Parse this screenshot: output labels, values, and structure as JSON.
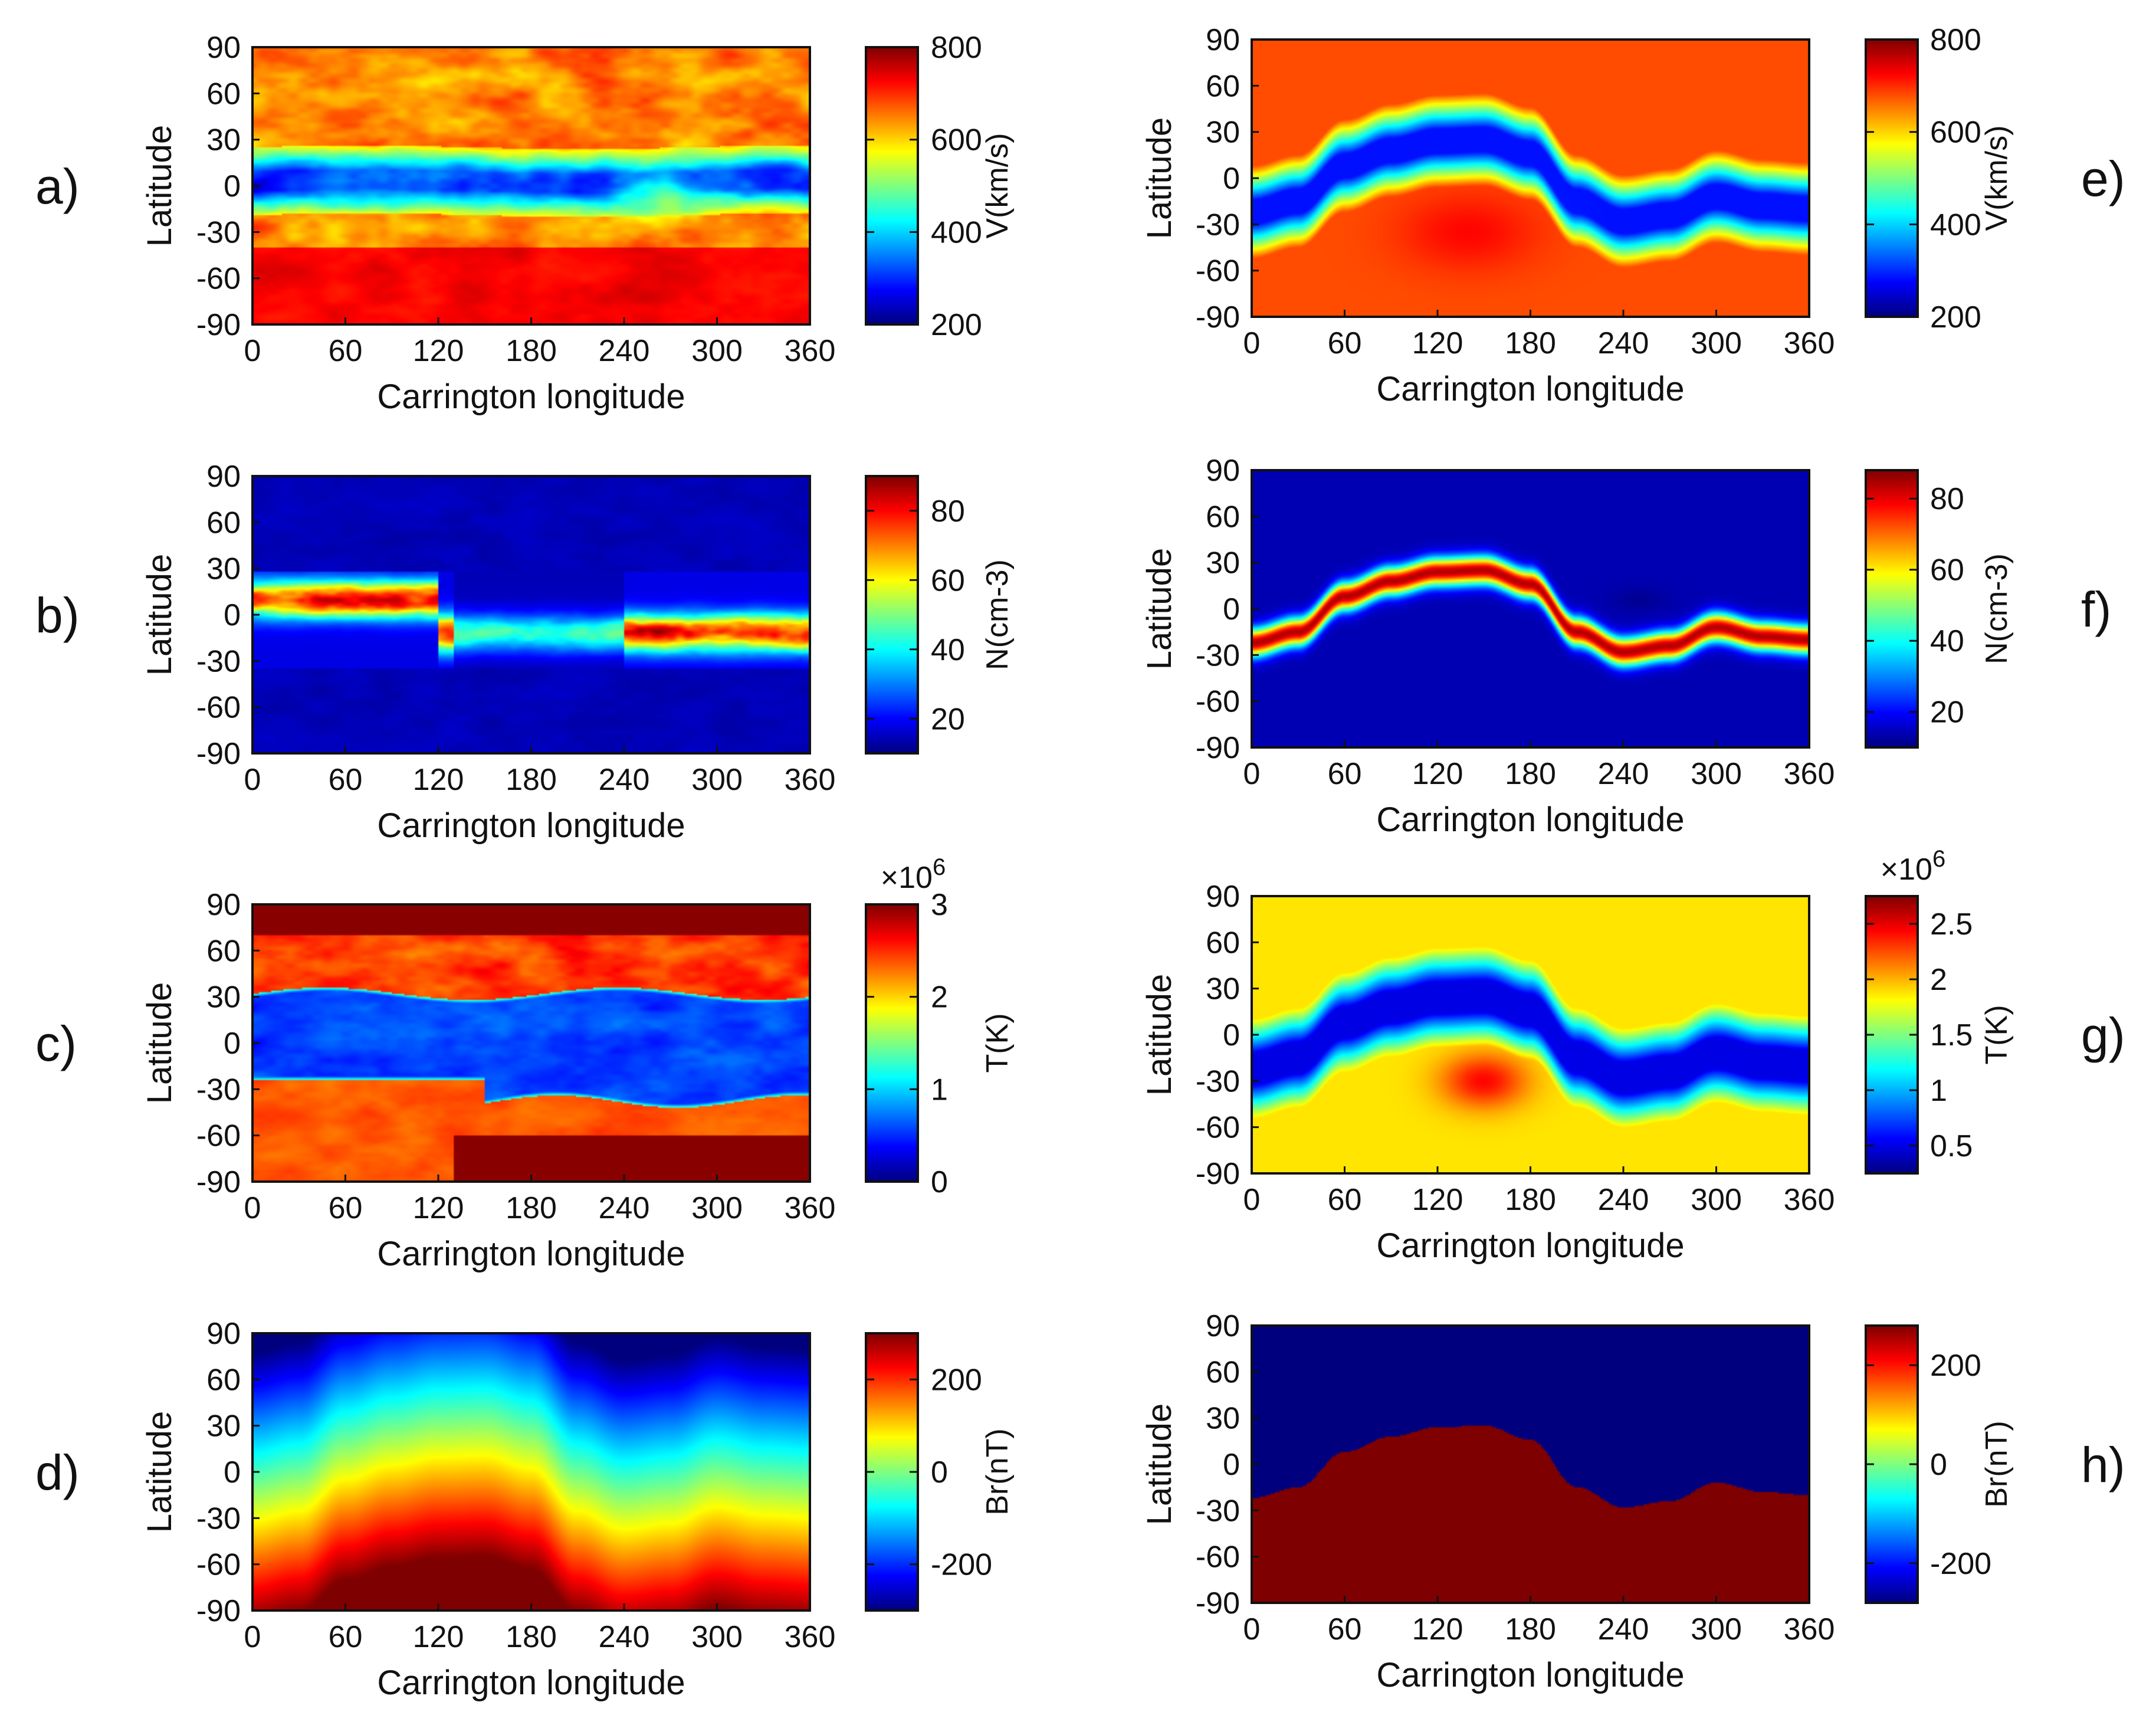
{
  "figure": {
    "description_free": true,
    "colormap": "jet",
    "colormap_stops": [
      "#00007f",
      "#0000ff",
      "#007fff",
      "#00ffff",
      "#7fff7f",
      "#ffff00",
      "#ff7f00",
      "#ff0000",
      "#7f0000"
    ]
  },
  "chart_data": [
    {
      "id": "a",
      "panel_label": "a)",
      "type": "heatmap",
      "column": "left",
      "row": 0,
      "xlabel": "Carrington longitude",
      "ylabel": "Latitude",
      "xlim": [
        0,
        360
      ],
      "ylim": [
        -90,
        90
      ],
      "xticks": [
        "0",
        "60",
        "120",
        "180",
        "240",
        "300",
        "360"
      ],
      "yticks": [
        "90",
        "60",
        "30",
        "0",
        "-30",
        "-60",
        "-90"
      ],
      "colorbar": {
        "label": "V(km/s)",
        "range": [
          200,
          800
        ],
        "ticks": [
          "800",
          "600",
          "400",
          "200"
        ],
        "tick_values": [
          800,
          600,
          400,
          200
        ],
        "multiplier": ""
      },
      "pattern": "obs_speed"
    },
    {
      "id": "b",
      "panel_label": "b)",
      "type": "heatmap",
      "column": "left",
      "row": 1,
      "xlabel": "Carrington longitude",
      "ylabel": "Latitude",
      "xlim": [
        0,
        360
      ],
      "ylim": [
        -90,
        90
      ],
      "xticks": [
        "0",
        "60",
        "120",
        "180",
        "240",
        "300",
        "360"
      ],
      "yticks": [
        "90",
        "60",
        "30",
        "0",
        "-30",
        "-60",
        "-90"
      ],
      "colorbar": {
        "label": "N(cm-3)",
        "range": [
          10,
          90
        ],
        "ticks": [
          "80",
          "60",
          "40",
          "20"
        ],
        "tick_values": [
          80,
          60,
          40,
          20
        ],
        "multiplier": ""
      },
      "pattern": "obs_density"
    },
    {
      "id": "c",
      "panel_label": "c)",
      "type": "heatmap",
      "column": "left",
      "row": 2,
      "xlabel": "Carrington longitude",
      "ylabel": "Latitude",
      "xlim": [
        0,
        360
      ],
      "ylim": [
        -90,
        90
      ],
      "xticks": [
        "0",
        "60",
        "120",
        "180",
        "240",
        "300",
        "360"
      ],
      "yticks": [
        "90",
        "60",
        "30",
        "0",
        "-30",
        "-60",
        "-90"
      ],
      "colorbar": {
        "label": "T(K)",
        "range": [
          0,
          3
        ],
        "ticks": [
          "3",
          "2",
          "1",
          "0"
        ],
        "tick_values": [
          3,
          2,
          1,
          0
        ],
        "multiplier": "×10",
        "multiplier_exp": "6"
      },
      "pattern": "obs_temp"
    },
    {
      "id": "d",
      "panel_label": "d)",
      "type": "heatmap",
      "column": "left",
      "row": 3,
      "xlabel": "Carrington longitude",
      "ylabel": "Latitude",
      "xlim": [
        0,
        360
      ],
      "ylim": [
        -90,
        90
      ],
      "xticks": [
        "0",
        "60",
        "120",
        "180",
        "240",
        "300",
        "360"
      ],
      "yticks": [
        "90",
        "60",
        "30",
        "0",
        "-30",
        "-60",
        "-90"
      ],
      "colorbar": {
        "label": "Br(nT)",
        "range": [
          -300,
          300
        ],
        "ticks": [
          "200",
          "0",
          "-200"
        ],
        "tick_values": [
          200,
          0,
          -200
        ],
        "multiplier": ""
      },
      "pattern": "obs_br"
    },
    {
      "id": "e",
      "panel_label": "e)",
      "type": "heatmap",
      "column": "right",
      "row": 0,
      "xlabel": "Carrington longitude",
      "ylabel": "Latitude",
      "xlim": [
        0,
        360
      ],
      "ylim": [
        -90,
        90
      ],
      "xticks": [
        "0",
        "60",
        "120",
        "180",
        "240",
        "300",
        "360"
      ],
      "yticks": [
        "90",
        "60",
        "30",
        "0",
        "-30",
        "-60",
        "-90"
      ],
      "colorbar": {
        "label": "V(km/s)",
        "range": [
          200,
          800
        ],
        "ticks": [
          "800",
          "600",
          "400",
          "200"
        ],
        "tick_values": [
          800,
          600,
          400,
          200
        ],
        "multiplier": ""
      },
      "pattern": "model_speed"
    },
    {
      "id": "f",
      "panel_label": "f)",
      "type": "heatmap",
      "column": "right",
      "row": 1,
      "xlabel": "Carrington longitude",
      "ylabel": "Latitude",
      "xlim": [
        0,
        360
      ],
      "ylim": [
        -90,
        90
      ],
      "xticks": [
        "0",
        "60",
        "120",
        "180",
        "240",
        "300",
        "360"
      ],
      "yticks": [
        "90",
        "60",
        "30",
        "0",
        "-30",
        "-60",
        "-90"
      ],
      "colorbar": {
        "label": "N(cm-3)",
        "range": [
          10,
          88
        ],
        "ticks": [
          "80",
          "60",
          "40",
          "20"
        ],
        "tick_values": [
          80,
          60,
          40,
          20
        ],
        "multiplier": ""
      },
      "pattern": "model_density"
    },
    {
      "id": "g",
      "panel_label": "g)",
      "type": "heatmap",
      "column": "right",
      "row": 2,
      "xlabel": "Carrington longitude",
      "ylabel": "Latitude",
      "xlim": [
        0,
        360
      ],
      "ylim": [
        -90,
        90
      ],
      "xticks": [
        "0",
        "60",
        "120",
        "180",
        "240",
        "300",
        "360"
      ],
      "yticks": [
        "90",
        "60",
        "30",
        "0",
        "-30",
        "-60",
        "-90"
      ],
      "colorbar": {
        "label": "T(K)",
        "range": [
          0.25,
          2.75
        ],
        "ticks": [
          "2.5",
          "2",
          "1.5",
          "1",
          "0.5"
        ],
        "tick_values": [
          2.5,
          2,
          1.5,
          1,
          0.5
        ],
        "multiplier": "×10",
        "multiplier_exp": "6"
      },
      "pattern": "model_temp"
    },
    {
      "id": "h",
      "panel_label": "h)",
      "type": "heatmap",
      "column": "right",
      "row": 3,
      "xlabel": "Carrington longitude",
      "ylabel": "Latitude",
      "xlim": [
        0,
        360
      ],
      "ylim": [
        -90,
        90
      ],
      "xticks": [
        "0",
        "60",
        "120",
        "180",
        "240",
        "300",
        "360"
      ],
      "yticks": [
        "90",
        "60",
        "30",
        "0",
        "-30",
        "-60",
        "-90"
      ],
      "colorbar": {
        "label": "Br(nT)",
        "range": [
          -280,
          280
        ],
        "ticks": [
          "200",
          "0",
          "-200"
        ],
        "tick_values": [
          200,
          0,
          -200
        ],
        "multiplier": ""
      },
      "pattern": "model_br"
    }
  ],
  "neutral_line": {
    "longitudes": [
      0,
      30,
      60,
      90,
      120,
      150,
      180,
      210,
      240,
      270,
      300,
      330,
      360
    ],
    "latitudes": [
      -22,
      -15,
      8,
      18,
      24,
      25,
      16,
      -15,
      -28,
      -24,
      -12,
      -18,
      -20
    ]
  }
}
